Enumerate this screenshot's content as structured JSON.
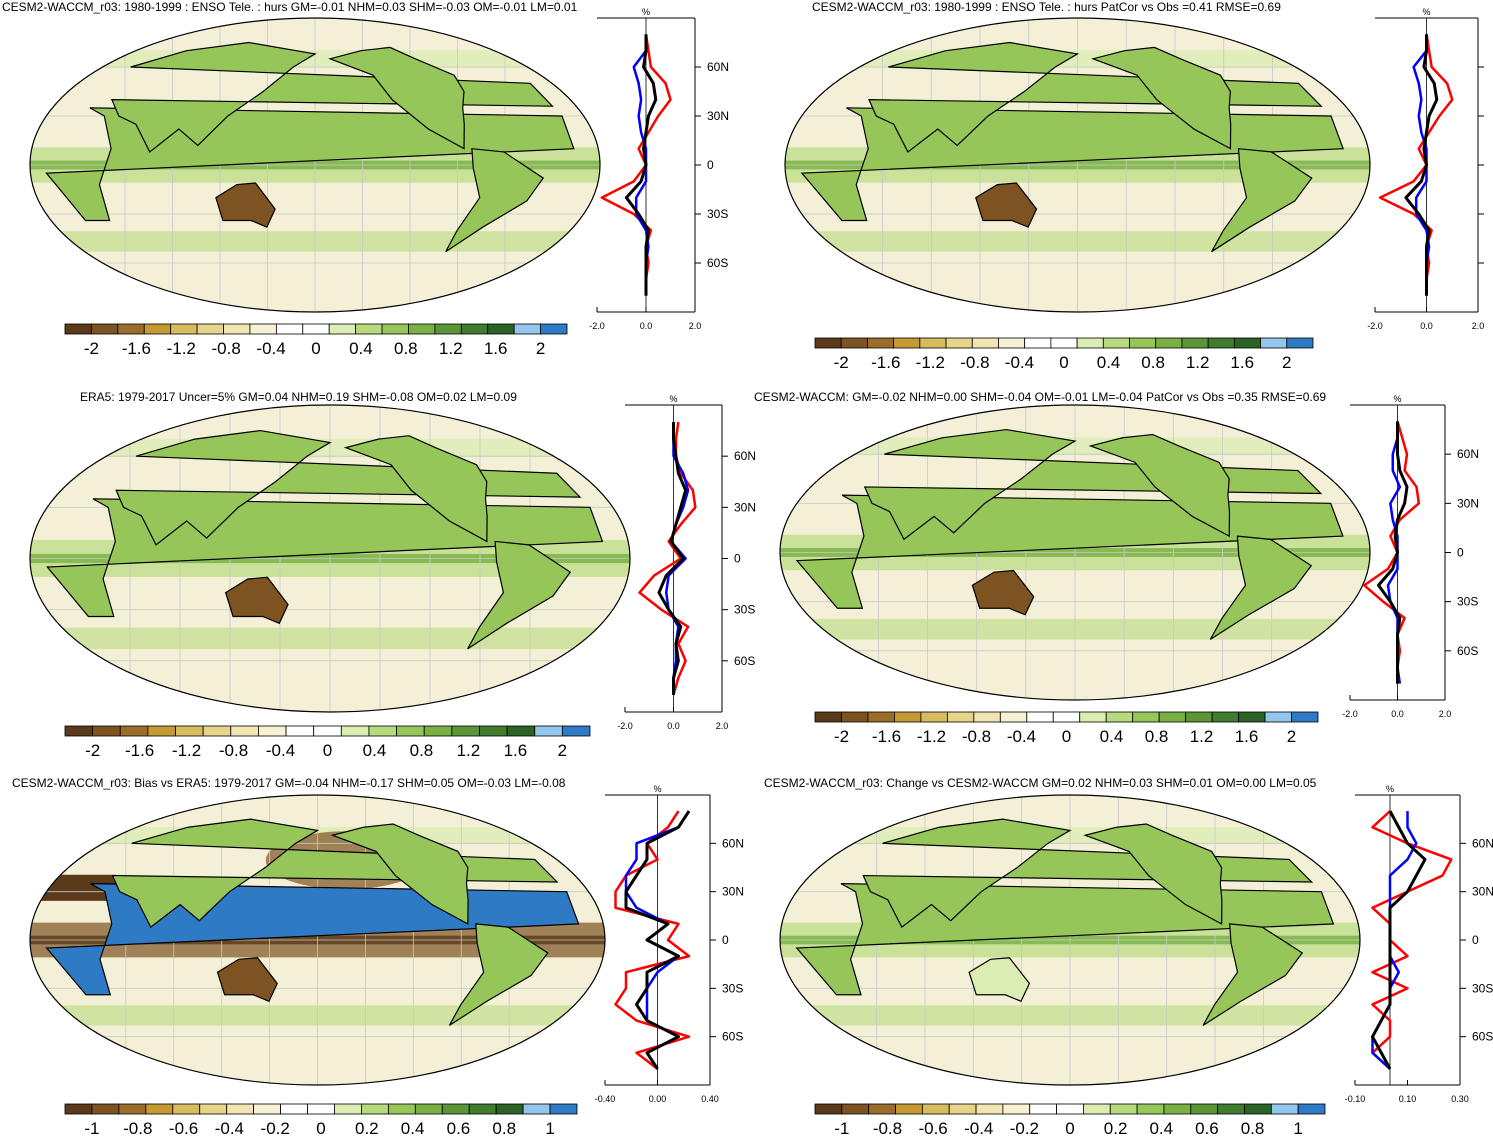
{
  "colors": {
    "palette": [
      "#5a3a18",
      "#7d5322",
      "#9b6d2c",
      "#c59a35",
      "#d7bc5e",
      "#e6d48a",
      "#f1e5b3",
      "#f7f1d6",
      "#ffffff",
      "#ffffff",
      "#dcedb4",
      "#b7da7e",
      "#96c65a",
      "#78b044",
      "#5a9637",
      "#3f7c2d",
      "#2a6325",
      "#92c6ea",
      "#2f7ac4"
    ],
    "land_outline": "#000000",
    "red_line": "#ff0000",
    "blue_line": "#0000ff",
    "black_line": "#000000"
  },
  "panels": [
    {
      "id": "model-enso",
      "title": "CESM2-WACCM_r03: 1980-1999 : ENSO Tele. : hurs GM=-0.01 NHM=0.03 SHM=-0.03 OM=-0.01 LM=0.01",
      "lat_labels": [
        "60N",
        "30N",
        "0",
        "30S",
        "60S"
      ],
      "x_ticks": [
        "-2.0",
        "0.0",
        "2.0"
      ],
      "x_unit": "%",
      "colorbar_labels": [
        "-2",
        "-1.6",
        "-1.2",
        "-0.8",
        "-0.4",
        "0",
        "0.4",
        "0.8",
        "1.2",
        "1.6",
        "2"
      ]
    },
    {
      "id": "model-patcor",
      "title": "CESM2-WACCM_r03: 1980-1999 : ENSO Tele. : hurs PatCor vs Obs =0.41 RMSE=0.69",
      "lat_labels": [
        "",
        "",
        "",
        "",
        ""
      ],
      "x_ticks": [
        "-2.0",
        "0.0",
        "2.0"
      ],
      "x_unit": "%",
      "colorbar_labels": [
        "-2",
        "-1.6",
        "-1.2",
        "-0.8",
        "-0.4",
        "0",
        "0.4",
        "0.8",
        "1.2",
        "1.6",
        "2"
      ]
    },
    {
      "id": "era5",
      "title": "ERA5: 1979-2017 Uncer=5% GM=0.04 NHM=0.19 SHM=-0.08 OM=0.02 LM=0.09",
      "lat_labels": [
        "60N",
        "30N",
        "0",
        "30S",
        "60S"
      ],
      "x_ticks": [
        "-2.0",
        "0.0",
        "2.0"
      ],
      "x_unit": "%",
      "colorbar_labels": [
        "-2",
        "-1.6",
        "-1.2",
        "-0.8",
        "-0.4",
        "0",
        "0.4",
        "0.8",
        "1.2",
        "1.6",
        "2"
      ]
    },
    {
      "id": "cesm2-waccm",
      "title": "CESM2-WACCM: GM=-0.02 NHM=0.00 SHM=-0.04 OM=-0.01 LM=-0.04 PatCor vs Obs =0.35 RMSE=0.69",
      "lat_labels": [
        "60N",
        "30N",
        "0",
        "30S",
        "60S"
      ],
      "x_ticks": [
        "-2.0",
        "0.0",
        "2.0"
      ],
      "x_unit": "%",
      "colorbar_labels": [
        "-2",
        "-1.6",
        "-1.2",
        "-0.8",
        "-0.4",
        "0",
        "0.4",
        "0.8",
        "1.2",
        "1.6",
        "2"
      ]
    },
    {
      "id": "bias",
      "title": "CESM2-WACCM_r03: Bias vs ERA5: 1979-2017 GM=-0.04 NHM=-0.17 SHM=0.05 OM=-0.03 LM=-0.08",
      "lat_labels": [
        "60N",
        "30N",
        "0",
        "30S",
        "60S"
      ],
      "x_ticks": [
        "-0.40",
        "0.00",
        "0.40"
      ],
      "x_unit": "%",
      "colorbar_labels": [
        "-1",
        "-0.8",
        "-0.6",
        "-0.4",
        "-0.2",
        "0",
        "0.2",
        "0.4",
        "0.6",
        "0.8",
        "1"
      ]
    },
    {
      "id": "change",
      "title": "CESM2-WACCM_r03: Change vs CESM2-WACCM GM=0.02 NHM=0.03 SHM=0.01 OM=0.00 LM=0.05",
      "lat_labels": [
        "60N",
        "30N",
        "0",
        "30S",
        "60S"
      ],
      "x_ticks": [
        "-0.10",
        "0.10",
        "0.30"
      ],
      "x_unit": "%",
      "colorbar_labels": [
        "-1",
        "-0.8",
        "-0.6",
        "-0.4",
        "-0.2",
        "0",
        "0.2",
        "0.4",
        "0.6",
        "0.8",
        "1"
      ]
    }
  ],
  "chart_data": [
    {
      "type": "line",
      "title": "CESM2-WACCM_r03: 1980-1999 : ENSO Tele. : hurs GM=-0.01 NHM=0.03 SHM=-0.03 OM=-0.01 LM=0.01",
      "y_label_ticks": [
        "60N",
        "30N",
        "0",
        "30S",
        "60S"
      ],
      "xlim": [
        -2.0,
        2.0
      ],
      "ylim": [
        -90,
        90
      ],
      "y": [
        80,
        70,
        60,
        50,
        40,
        30,
        20,
        10,
        0,
        -10,
        -20,
        -30,
        -40,
        -50,
        -60,
        -70,
        -80
      ],
      "series": [
        {
          "color": "red",
          "values": [
            0.0,
            0.1,
            0.2,
            0.8,
            1.0,
            0.5,
            0.1,
            -0.3,
            0.0,
            -0.5,
            -1.8,
            -0.5,
            0.2,
            0.0,
            0.1,
            0.0,
            0.0
          ]
        },
        {
          "color": "blue",
          "values": [
            0.0,
            0.0,
            -0.5,
            -0.3,
            -0.2,
            -0.3,
            -0.2,
            0.0,
            0.0,
            0.0,
            -0.4,
            -0.4,
            0.0,
            0.1,
            0.0,
            0.0,
            0.0
          ]
        },
        {
          "color": "black",
          "values": [
            0.0,
            0.0,
            -0.1,
            0.3,
            0.4,
            0.1,
            0.0,
            -0.1,
            0.0,
            -0.2,
            -0.8,
            -0.3,
            0.1,
            0.0,
            0.0,
            0.0,
            0.0
          ]
        }
      ]
    },
    {
      "type": "line",
      "title": "CESM2-WACCM_r03: 1980-1999 : ENSO Tele. : hurs PatCor vs Obs =0.41 RMSE=0.69",
      "xlim": [
        -2.0,
        2.0
      ],
      "ylim": [
        -90,
        90
      ],
      "y": [
        80,
        70,
        60,
        50,
        40,
        30,
        20,
        10,
        0,
        -10,
        -20,
        -30,
        -40,
        -50,
        -60,
        -70,
        -80
      ],
      "series": [
        {
          "color": "red",
          "values": [
            0.0,
            0.1,
            0.2,
            0.8,
            1.0,
            0.5,
            0.1,
            -0.3,
            0.0,
            -0.5,
            -1.8,
            -0.5,
            0.2,
            0.0,
            0.1,
            0.0,
            0.0
          ]
        },
        {
          "color": "blue",
          "values": [
            0.0,
            0.0,
            -0.5,
            -0.3,
            -0.2,
            -0.3,
            -0.2,
            0.0,
            0.0,
            0.0,
            -0.4,
            -0.4,
            0.0,
            0.1,
            0.0,
            0.0,
            0.0
          ]
        },
        {
          "color": "black",
          "values": [
            0.0,
            0.0,
            -0.1,
            0.3,
            0.4,
            0.1,
            0.0,
            -0.1,
            0.0,
            -0.2,
            -0.8,
            -0.3,
            0.1,
            0.0,
            0.0,
            0.0,
            0.0
          ]
        }
      ]
    },
    {
      "type": "line",
      "title": "ERA5: 1979-2017 Uncer=5% GM=0.04 NHM=0.19 SHM=-0.08 OM=0.02 LM=0.09",
      "y_label_ticks": [
        "60N",
        "30N",
        "0",
        "30S",
        "60S"
      ],
      "xlim": [
        -2.0,
        2.0
      ],
      "ylim": [
        -90,
        90
      ],
      "y": [
        80,
        70,
        60,
        50,
        40,
        30,
        20,
        10,
        0,
        -10,
        -20,
        -30,
        -40,
        -50,
        -60,
        -70,
        -80
      ],
      "series": [
        {
          "color": "red",
          "values": [
            0.2,
            0.1,
            0.1,
            0.3,
            0.8,
            0.9,
            0.3,
            -0.2,
            0.3,
            -0.8,
            -1.4,
            -0.5,
            0.6,
            0.2,
            0.5,
            0.2,
            0.0
          ]
        },
        {
          "color": "blue",
          "values": [
            0.0,
            0.0,
            0.0,
            0.4,
            0.6,
            0.4,
            0.1,
            -0.1,
            0.5,
            -0.2,
            -0.3,
            -0.2,
            0.2,
            0.1,
            0.1,
            0.0,
            0.0
          ]
        },
        {
          "color": "black",
          "values": [
            0.0,
            0.0,
            0.1,
            0.2,
            0.5,
            0.3,
            0.1,
            -0.1,
            0.4,
            -0.3,
            -0.6,
            -0.2,
            0.3,
            0.1,
            0.2,
            0.0,
            0.0
          ]
        }
      ]
    },
    {
      "type": "line",
      "title": "CESM2-WACCM: GM=-0.02 NHM=0.00 SHM=-0.04 OM=-0.01 LM=-0.04 PatCor vs Obs =0.35 RMSE=0.69",
      "y_label_ticks": [
        "60N",
        "30N",
        "0",
        "30S",
        "60S"
      ],
      "xlim": [
        -2.0,
        2.0
      ],
      "ylim": [
        -90,
        90
      ],
      "y": [
        80,
        70,
        60,
        50,
        40,
        30,
        20,
        10,
        0,
        -10,
        -20,
        -30,
        -40,
        -50,
        -60,
        -70,
        -80
      ],
      "series": [
        {
          "color": "red",
          "values": [
            0.0,
            0.2,
            0.4,
            0.3,
            0.8,
            0.9,
            0.1,
            -0.3,
            0.0,
            -0.4,
            -1.4,
            -0.6,
            0.3,
            0.0,
            0.1,
            0.0,
            0.0
          ]
        },
        {
          "color": "blue",
          "values": [
            0.0,
            0.0,
            -0.2,
            -0.2,
            0.1,
            -0.3,
            -0.2,
            0.0,
            0.0,
            0.0,
            -0.4,
            -0.3,
            0.0,
            0.0,
            0.0,
            0.0,
            0.1
          ]
        },
        {
          "color": "black",
          "values": [
            0.0,
            0.0,
            0.0,
            0.1,
            0.4,
            0.3,
            0.0,
            -0.1,
            0.0,
            -0.2,
            -0.8,
            -0.3,
            0.1,
            0.0,
            0.0,
            0.0,
            0.0
          ]
        }
      ]
    },
    {
      "type": "line",
      "title": "CESM2-WACCM_r03: Bias vs ERA5: 1979-2017 GM=-0.04 NHM=-0.17 SHM=0.05 OM=-0.03 LM=-0.08",
      "y_label_ticks": [
        "60N",
        "30N",
        "0",
        "30S",
        "60S"
      ],
      "xlim": [
        -0.5,
        0.5
      ],
      "ylim": [
        -90,
        90
      ],
      "y": [
        80,
        70,
        60,
        50,
        40,
        30,
        20,
        10,
        0,
        -10,
        -20,
        -30,
        -40,
        -50,
        -60,
        -70,
        -80
      ],
      "series": [
        {
          "color": "red",
          "values": [
            0.2,
            0.1,
            -0.1,
            0.0,
            -0.3,
            -0.4,
            -0.4,
            0.2,
            0.1,
            0.3,
            -0.3,
            -0.3,
            -0.4,
            -0.2,
            0.3,
            -0.2,
            0.0
          ]
        },
        {
          "color": "blue",
          "values": [
            0.3,
            0.2,
            -0.2,
            -0.2,
            -0.3,
            -0.3,
            -0.2,
            0.1,
            -0.1,
            0.2,
            0.0,
            -0.1,
            -0.1,
            -0.1,
            0.2,
            -0.1,
            0.0
          ]
        },
        {
          "color": "black",
          "values": [
            0.3,
            0.2,
            -0.1,
            -0.1,
            -0.2,
            -0.3,
            -0.3,
            0.1,
            -0.1,
            0.2,
            -0.1,
            -0.1,
            -0.2,
            -0.1,
            0.2,
            -0.1,
            0.0
          ]
        }
      ]
    },
    {
      "type": "line",
      "title": "CESM2-WACCM_r03: Change vs CESM2-WACCM GM=0.02 NHM=0.03 SHM=0.01 OM=0.00 LM=0.05",
      "y_label_ticks": [
        "60N",
        "30N",
        "0",
        "30S",
        "60S"
      ],
      "xlim": [
        -0.2,
        0.4
      ],
      "ylim": [
        -90,
        90
      ],
      "y": [
        80,
        70,
        60,
        50,
        40,
        30,
        20,
        10,
        0,
        -10,
        -20,
        -30,
        -40,
        -50,
        -60,
        -70,
        -80
      ],
      "series": [
        {
          "color": "red",
          "values": [
            0.0,
            -0.1,
            0.1,
            0.35,
            0.3,
            0.1,
            -0.1,
            0.0,
            0.0,
            0.1,
            -0.1,
            0.1,
            -0.1,
            0.0,
            0.0,
            -0.1,
            0.0
          ]
        },
        {
          "color": "blue",
          "values": [
            0.1,
            0.1,
            0.15,
            0.1,
            0.0,
            0.0,
            0.0,
            0.0,
            0.0,
            0.0,
            0.05,
            0.0,
            0.0,
            -0.05,
            -0.1,
            -0.1,
            0.0
          ]
        },
        {
          "color": "black",
          "values": [
            0.0,
            0.05,
            0.1,
            0.2,
            0.15,
            0.1,
            0.0,
            0.0,
            0.0,
            0.0,
            0.0,
            0.0,
            0.0,
            -0.05,
            -0.1,
            -0.05,
            0.0
          ]
        }
      ]
    }
  ]
}
